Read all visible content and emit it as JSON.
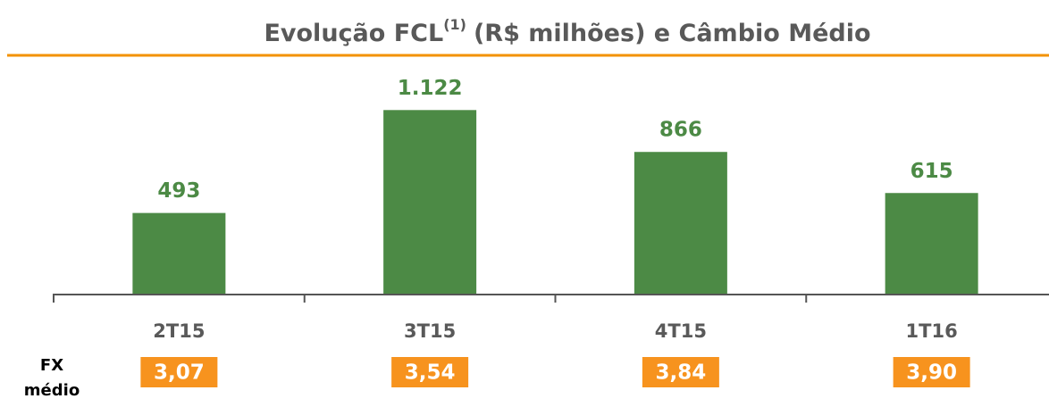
{
  "chart_data": {
    "type": "bar",
    "title": "Evolução FCL",
    "title_superscript": "(1)",
    "title_rest": "(R$ milhões) e Câmbio Médio",
    "categories": [
      "2T15",
      "3T15",
      "4T15",
      "1T16"
    ],
    "values": [
      493,
      1122,
      866,
      615
    ],
    "value_labels": [
      "493",
      "1.122",
      "866",
      "615"
    ],
    "color": "#4c8a45",
    "ylim": [
      0,
      1200
    ],
    "fx": {
      "label_lines": [
        "FX",
        "médio"
      ],
      "values": [
        3.07,
        3.54,
        3.84,
        3.9
      ],
      "value_labels": [
        "3,07",
        "3,54",
        "3,84",
        "3,90"
      ],
      "color": "#f7931e"
    }
  }
}
